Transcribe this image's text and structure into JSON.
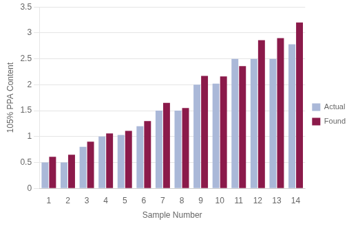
{
  "chart_data": {
    "type": "bar",
    "xlabel": "Sample Number",
    "ylabel": "105% PPA Content",
    "categories": [
      "1",
      "2",
      "3",
      "4",
      "5",
      "6",
      "7",
      "8",
      "9",
      "10",
      "11",
      "12",
      "13",
      "14"
    ],
    "series": [
      {
        "name": "Actual",
        "color": "#aab8d8",
        "values": [
          0.5,
          0.5,
          0.8,
          1.0,
          1.03,
          1.2,
          1.5,
          1.5,
          2.0,
          2.02,
          2.5,
          2.5,
          2.5,
          2.78
        ]
      },
      {
        "name": "Found",
        "color": "#8b1a4a",
        "values": [
          0.61,
          0.65,
          0.9,
          1.06,
          1.11,
          1.3,
          1.65,
          1.55,
          2.17,
          2.16,
          2.36,
          2.86,
          2.9,
          3.2
        ]
      }
    ],
    "ylim": [
      0,
      3.5
    ],
    "yticks": [
      0,
      0.5,
      1.0,
      1.5,
      2.0,
      2.5,
      3.0,
      3.5
    ],
    "grid": "y",
    "legend": "right"
  }
}
